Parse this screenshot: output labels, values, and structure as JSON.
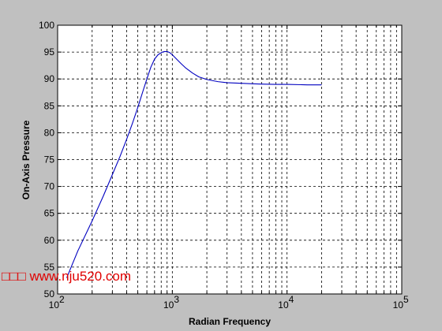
{
  "chart_data": {
    "type": "line",
    "title": "",
    "xlabel": "Radian Frequency",
    "ylabel": "On-Axis Pressure",
    "xscale": "log",
    "xlim": [
      100,
      100000
    ],
    "ylim": [
      50,
      100
    ],
    "grid": true,
    "grid_style": "dashed",
    "x_ticks": [
      {
        "value": 100,
        "base": "10",
        "exp": "2"
      },
      {
        "value": 1000,
        "base": "10",
        "exp": "3"
      },
      {
        "value": 10000,
        "base": "10",
        "exp": "4"
      },
      {
        "value": 100000,
        "base": "10",
        "exp": "5"
      }
    ],
    "y_ticks": [
      "50",
      "55",
      "60",
      "65",
      "70",
      "75",
      "80",
      "85",
      "90",
      "95",
      "100"
    ],
    "series": [
      {
        "color": "#0000c0",
        "x": [
          120,
          150,
          200,
          250,
          300,
          350,
          400,
          450,
          500,
          550,
          600,
          650,
          700,
          750,
          800,
          850,
          900,
          950,
          1000,
          1100,
          1200,
          1300,
          1500,
          1700,
          2000,
          2500,
          3000,
          4000,
          5000,
          6000,
          8000,
          10000,
          15000,
          20000
        ],
        "y": [
          53,
          58,
          63.6,
          68.2,
          72.2,
          75.6,
          78.8,
          81.8,
          84.7,
          87.5,
          90,
          92.2,
          93.7,
          94.5,
          94.9,
          95.1,
          95.1,
          94.9,
          94.5,
          93.6,
          92.8,
          92.1,
          91.1,
          90.4,
          89.9,
          89.5,
          89.3,
          89.2,
          89.1,
          89.05,
          89.0,
          89.0,
          88.9,
          88.9
        ]
      }
    ]
  },
  "watermark": {
    "text": "□□□ www.nju520.com",
    "color": "#e00000"
  }
}
